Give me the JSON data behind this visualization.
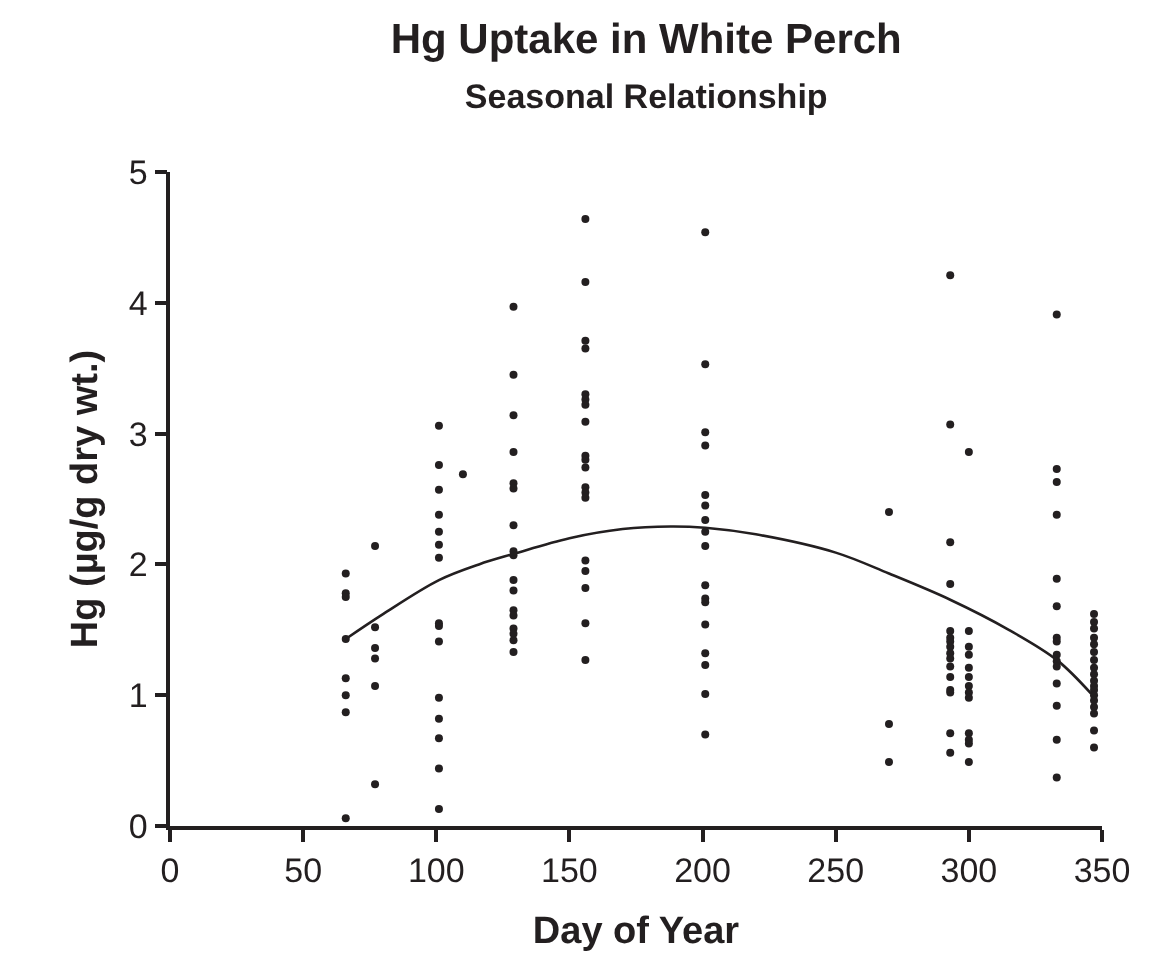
{
  "chart_data": {
    "type": "scatter",
    "title": "Hg Uptake in White Perch",
    "subtitle": "Seasonal Relationship",
    "xlabel": "Day of Year",
    "ylabel": "Hg (µg/g dry wt.)",
    "xlim": [
      0,
      350
    ],
    "xticks": [
      0,
      50,
      100,
      150,
      200,
      250,
      300,
      350
    ],
    "ylim": [
      0,
      5
    ],
    "yticks": [
      0,
      1,
      2,
      3,
      4,
      5
    ],
    "marker": "circle",
    "series": [
      {
        "color": "#231f20",
        "x": [
          66,
          66,
          66,
          66,
          66,
          66,
          66,
          66,
          77,
          77,
          77,
          77,
          77,
          77,
          101,
          101,
          101,
          101,
          101,
          101,
          101,
          101,
          101,
          101,
          101,
          101,
          101,
          101,
          101,
          110,
          129,
          129,
          129,
          129,
          129,
          129,
          129,
          129,
          129,
          129,
          129,
          129,
          129,
          129,
          129,
          129,
          129,
          156,
          156,
          156,
          156,
          156,
          156,
          156,
          156,
          156,
          156,
          156,
          156,
          156,
          156,
          156,
          156,
          156,
          156,
          156,
          201,
          201,
          201,
          201,
          201,
          201,
          201,
          201,
          201,
          201,
          201,
          201,
          201,
          201,
          201,
          201,
          201,
          270,
          270,
          270,
          293,
          293,
          293,
          293,
          293,
          293,
          293,
          293,
          293,
          293,
          293,
          293,
          293,
          293,
          293,
          293,
          300,
          300,
          300,
          300,
          300,
          300,
          300,
          300,
          300,
          300,
          300,
          300,
          300,
          333,
          333,
          333,
          333,
          333,
          333,
          333,
          333,
          333,
          333,
          333,
          333,
          333,
          333,
          333,
          347,
          347,
          347,
          347,
          347,
          347,
          347,
          347,
          347,
          347,
          347,
          347,
          347,
          347,
          347,
          347,
          347,
          347
        ],
        "values": [
          1.93,
          1.78,
          1.75,
          1.43,
          1.13,
          1.0,
          0.87,
          0.06,
          2.14,
          1.52,
          1.36,
          1.28,
          1.07,
          0.32,
          3.06,
          2.76,
          2.57,
          2.38,
          2.25,
          2.15,
          2.05,
          1.55,
          1.53,
          1.41,
          0.98,
          0.82,
          0.67,
          0.44,
          0.13,
          2.69,
          3.97,
          3.45,
          3.14,
          2.86,
          2.62,
          2.58,
          2.3,
          2.1,
          2.07,
          1.88,
          1.8,
          1.65,
          1.61,
          1.51,
          1.47,
          1.42,
          1.33,
          4.64,
          4.16,
          3.71,
          3.65,
          3.3,
          3.26,
          3.22,
          3.09,
          2.83,
          2.8,
          2.74,
          2.59,
          2.55,
          2.51,
          2.03,
          1.95,
          1.82,
          1.55,
          1.27,
          4.54,
          3.53,
          3.01,
          2.91,
          2.53,
          2.45,
          2.34,
          2.25,
          2.14,
          1.84,
          1.74,
          1.71,
          1.54,
          1.32,
          1.23,
          1.01,
          0.7,
          2.4,
          0.78,
          0.49,
          4.21,
          3.07,
          2.17,
          1.85,
          1.49,
          1.44,
          1.41,
          1.37,
          1.32,
          1.28,
          1.22,
          1.14,
          1.04,
          1.02,
          0.71,
          0.56,
          2.86,
          1.49,
          1.37,
          1.31,
          1.21,
          1.14,
          1.07,
          1.02,
          0.98,
          0.71,
          0.66,
          0.63,
          0.49,
          3.91,
          2.73,
          2.63,
          2.38,
          1.89,
          1.68,
          1.44,
          1.41,
          1.31,
          1.26,
          1.22,
          1.09,
          0.92,
          0.66,
          0.37,
          1.62,
          1.56,
          1.51,
          1.44,
          1.39,
          1.33,
          1.27,
          1.21,
          1.16,
          1.11,
          1.07,
          1.04,
          1.0,
          0.96,
          0.91,
          0.86,
          0.73,
          0.6
        ]
      },
      {
        "type": "line",
        "color": "#231f20",
        "marker": "none",
        "line_style": "solid",
        "x": [
          66,
          80,
          101,
          116,
          129,
          150,
          170,
          188,
          201,
          220,
          250,
          270,
          293,
          315,
          333,
          346
        ],
        "values": [
          1.43,
          1.62,
          1.88,
          2.0,
          2.08,
          2.2,
          2.27,
          2.29,
          2.28,
          2.23,
          2.09,
          1.93,
          1.73,
          1.5,
          1.27,
          1.01
        ]
      }
    ]
  }
}
